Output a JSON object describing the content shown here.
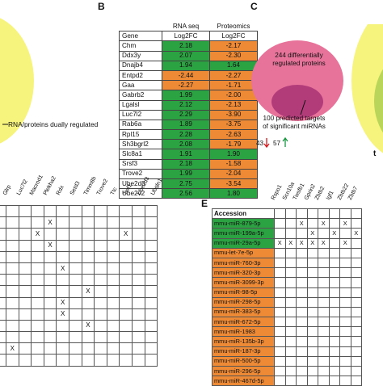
{
  "panels": {
    "b": "B",
    "c": "C",
    "e": "E"
  },
  "panel_a": {
    "legend": "RNA/proteins dually regulated"
  },
  "panel_b": {
    "head_top": [
      "RNA seq",
      "Proteomics"
    ],
    "head_bottom": [
      "Gene",
      "Log2FC",
      "Log2FC"
    ],
    "rows": [
      {
        "gene": "Chm",
        "rna": "2.18",
        "prot": "-2.17",
        "rc": "green",
        "pc": "orange"
      },
      {
        "gene": "Ddx3y",
        "rna": "2.07",
        "prot": "-2.30",
        "rc": "green",
        "pc": "orange"
      },
      {
        "gene": "Dnajb4",
        "rna": "1.94",
        "prot": "1.64",
        "rc": "green",
        "pc": "green"
      },
      {
        "gene": "Entpd2",
        "rna": "-2.44",
        "prot": "-2.27",
        "rc": "orange",
        "pc": "orange"
      },
      {
        "gene": "Gaa",
        "rna": "-2.27",
        "prot": "-1.71",
        "rc": "orange",
        "pc": "orange"
      },
      {
        "gene": "Gabrb2",
        "rna": "1.99",
        "prot": "-2.00",
        "rc": "green",
        "pc": "orange"
      },
      {
        "gene": "Lgalsl",
        "rna": "2.12",
        "prot": "-2.13",
        "rc": "green",
        "pc": "orange"
      },
      {
        "gene": "Luc7l2",
        "rna": "2.29",
        "prot": "-3.90",
        "rc": "green",
        "pc": "orange"
      },
      {
        "gene": "Rab6a",
        "rna": "1.89",
        "prot": "-3.75",
        "rc": "green",
        "pc": "orange"
      },
      {
        "gene": "Rpl15",
        "rna": "2.28",
        "prot": "-2.63",
        "rc": "green",
        "pc": "orange"
      },
      {
        "gene": "Sh3bgrl2",
        "rna": "2.08",
        "prot": "-1.79",
        "rc": "green",
        "pc": "orange"
      },
      {
        "gene": "Slc8a1",
        "rna": "1.91",
        "prot": "1.90",
        "rc": "green",
        "pc": "green"
      },
      {
        "gene": "Srsf3",
        "rna": "2.18",
        "prot": "-1.58",
        "rc": "green",
        "pc": "orange"
      },
      {
        "gene": "Trove2",
        "rna": "1.99",
        "prot": "-2.04",
        "rc": "green",
        "pc": "orange"
      },
      {
        "gene": "Ube2d3",
        "rna": "2.75",
        "prot": "-3.54",
        "rc": "green",
        "pc": "orange"
      },
      {
        "gene": "Ube2v2",
        "rna": "2.56",
        "prot": "1.80",
        "rc": "green",
        "pc": "green"
      }
    ]
  },
  "panel_c": {
    "outer": "244 differentially regulated proteins",
    "inner": "100 predicted targets of significant miRNAs",
    "down": "43",
    "up": "57",
    "right_letter": "t"
  },
  "panel_d": {
    "columns": [
      "Glrp",
      "Luc7l2",
      "Macrod1",
      "Plekha2",
      "Rdx",
      "Setd3",
      "Timm8b",
      "Trove2",
      "Ttc",
      "Twf1",
      "Ube2d3",
      "Ubqln1"
    ],
    "marks": [
      [],
      [
        3
      ],
      [
        2,
        9
      ],
      [
        3
      ],
      [],
      [
        4
      ],
      [],
      [
        6
      ],
      [
        4
      ],
      [
        4
      ],
      [
        6
      ],
      [],
      [
        0
      ],
      []
    ]
  },
  "panel_e": {
    "header": "Accession",
    "columns": [
      "Rspo1",
      "Scn10a",
      "Twsfb1",
      "Gprin2",
      "Zbtb2",
      "Igf1",
      "Zbtb22",
      "Zbtb7"
    ],
    "rows": [
      {
        "name": "mmu-miR-879-5p",
        "color": "green",
        "x": [
          2,
          4,
          6
        ]
      },
      {
        "name": "mmu-miR-199a-5p",
        "color": "green",
        "x": [
          3,
          5,
          7
        ]
      },
      {
        "name": "mmu-miR-29a-5p",
        "color": "green",
        "x": [
          0,
          1,
          2,
          3,
          4,
          6
        ]
      },
      {
        "name": "mmu-let-7e-5p",
        "color": "orange",
        "x": []
      },
      {
        "name": "mmu-miR-760-3p",
        "color": "orange",
        "x": []
      },
      {
        "name": "mmu-miR-320-3p",
        "color": "orange",
        "x": []
      },
      {
        "name": "mmu-miR-3099-3p",
        "color": "orange",
        "x": []
      },
      {
        "name": "mmu-miR-98-5p",
        "color": "orange",
        "x": []
      },
      {
        "name": "mmu-miR-298-5p",
        "color": "orange",
        "x": []
      },
      {
        "name": "mmu-miR-383-5p",
        "color": "orange",
        "x": []
      },
      {
        "name": "mmu-miR-672-5p",
        "color": "orange",
        "x": []
      },
      {
        "name": "mmu-miR-1983",
        "color": "orange",
        "x": []
      },
      {
        "name": "mmu-miR-135b-3p",
        "color": "orange",
        "x": []
      },
      {
        "name": "mmu-miR-187-3p",
        "color": "orange",
        "x": []
      },
      {
        "name": "mmu-miR-500-5p",
        "color": "orange",
        "x": []
      },
      {
        "name": "mmu-miR-296-5p",
        "color": "orange",
        "x": []
      },
      {
        "name": "mmu-miR-467d-5p",
        "color": "orange",
        "x": []
      }
    ]
  },
  "mark": "X",
  "colors": {
    "green": "#2ca342",
    "orange": "#ee8a35",
    "yellow": "#f6f47c",
    "pink": "#e8739a",
    "magenta": "#b23c7a",
    "red_arrow": "#d7191c",
    "green_arrow": "#1a9641"
  }
}
